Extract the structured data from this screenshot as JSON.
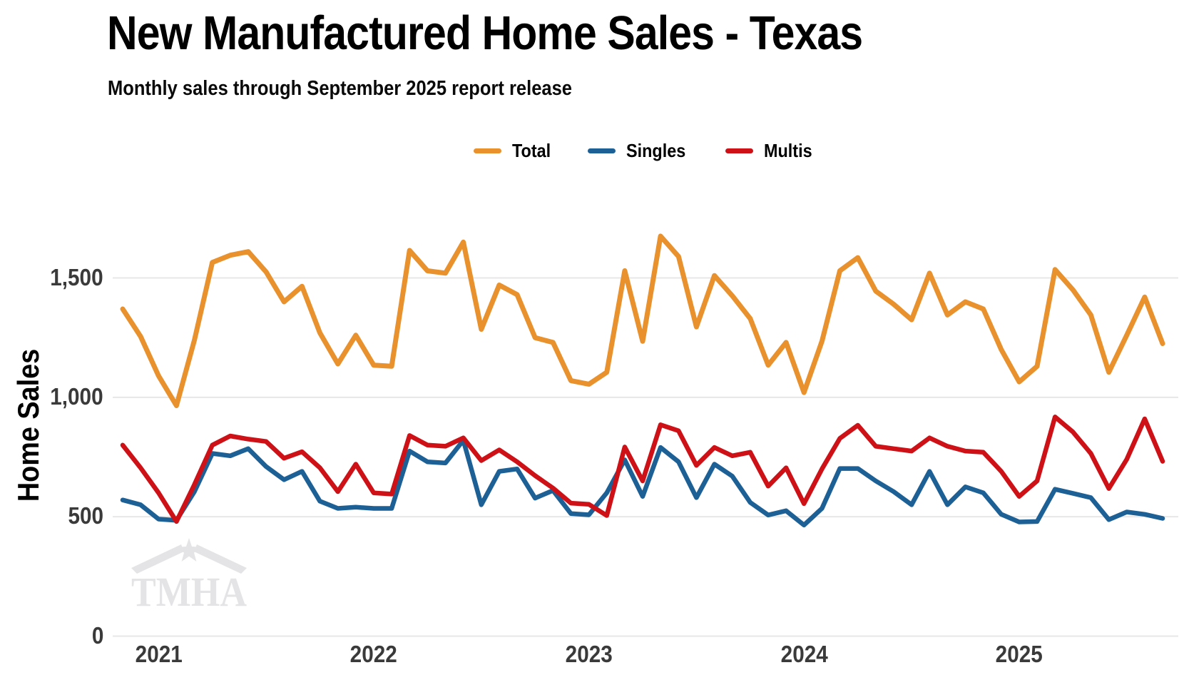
{
  "title": "New Manufactured Home Sales - Texas",
  "subtitle": "Monthly sales through September 2025 report release",
  "watermark": "TMHA",
  "legend": [
    {
      "label": "Total",
      "color": "#E8912D"
    },
    {
      "label": "Singles",
      "color": "#1D6096"
    },
    {
      "label": "Multis",
      "color": "#CE1117"
    }
  ],
  "y_axis": {
    "title": "Home Sales",
    "ticks": [
      {
        "label": "0",
        "value": 0
      },
      {
        "label": "500",
        "value": 500
      },
      {
        "label": "1,000",
        "value": 1000
      },
      {
        "label": "1,500",
        "value": 1500
      }
    ]
  },
  "x_axis": {
    "ticks": [
      "2021",
      "2022",
      "2023",
      "2024",
      "2025"
    ]
  },
  "chart_data": {
    "type": "line",
    "title": "New Manufactured Home Sales - Texas",
    "subtitle": "Monthly sales through September 2025 report release",
    "ylabel": "Home Sales",
    "ylim": [
      0,
      1750
    ],
    "grid": "horizontal",
    "legend_position": "top-center",
    "x": [
      "2020-11",
      "2020-12",
      "2021-01",
      "2021-02",
      "2021-03",
      "2021-04",
      "2021-05",
      "2021-06",
      "2021-07",
      "2021-08",
      "2021-09",
      "2021-10",
      "2021-11",
      "2021-12",
      "2022-01",
      "2022-02",
      "2022-03",
      "2022-04",
      "2022-05",
      "2022-06",
      "2022-07",
      "2022-08",
      "2022-09",
      "2022-10",
      "2022-11",
      "2022-12",
      "2023-01",
      "2023-02",
      "2023-03",
      "2023-04",
      "2023-05",
      "2023-06",
      "2023-07",
      "2023-08",
      "2023-09",
      "2023-10",
      "2023-11",
      "2023-12",
      "2024-01",
      "2024-02",
      "2024-03",
      "2024-04",
      "2024-05",
      "2024-06",
      "2024-07",
      "2024-08",
      "2024-09",
      "2024-10",
      "2024-11",
      "2024-12",
      "2025-01",
      "2025-02",
      "2025-03",
      "2025-04",
      "2025-05",
      "2025-06",
      "2025-07",
      "2025-08",
      "2025-09"
    ],
    "series": [
      {
        "name": "Total",
        "color": "#E8912D",
        "width": 7,
        "values": [
          1370,
          1255,
          1090,
          965,
          1240,
          1565,
          1595,
          1610,
          1525,
          1400,
          1465,
          1270,
          1140,
          1260,
          1135,
          1130,
          1615,
          1530,
          1520,
          1650,
          1285,
          1470,
          1430,
          1250,
          1230,
          1070,
          1055,
          1105,
          1530,
          1235,
          1675,
          1590,
          1295,
          1510,
          1425,
          1330,
          1135,
          1230,
          1020,
          1235,
          1530,
          1585,
          1445,
          1390,
          1325,
          1520,
          1345,
          1400,
          1370,
          1200,
          1065,
          1130,
          1535,
          1450,
          1345,
          1105,
          1260,
          1420,
          1225
        ]
      },
      {
        "name": "Singles",
        "color": "#1D6096",
        "width": 6.5,
        "values": [
          570,
          550,
          490,
          485,
          605,
          765,
          755,
          785,
          710,
          655,
          690,
          565,
          535,
          540,
          535,
          535,
          775,
          730,
          725,
          820,
          550,
          690,
          700,
          578,
          610,
          513,
          508,
          600,
          738,
          585,
          790,
          730,
          580,
          720,
          670,
          560,
          507,
          525,
          465,
          535,
          702,
          702,
          650,
          605,
          550,
          690,
          550,
          625,
          600,
          510,
          478,
          480,
          615,
          598,
          580,
          488,
          520,
          510,
          493
        ]
      },
      {
        "name": "Multis",
        "color": "#CE1117",
        "width": 6.5,
        "values": [
          800,
          705,
          600,
          480,
          635,
          800,
          838,
          825,
          815,
          745,
          772,
          705,
          605,
          720,
          600,
          595,
          840,
          800,
          795,
          830,
          735,
          780,
          730,
          672,
          620,
          557,
          552,
          505,
          792,
          650,
          885,
          860,
          715,
          790,
          755,
          770,
          628,
          705,
          555,
          700,
          828,
          883,
          795,
          785,
          775,
          830,
          795,
          775,
          770,
          690,
          585,
          650,
          918,
          855,
          765,
          618,
          740,
          910,
          732
        ]
      }
    ]
  }
}
